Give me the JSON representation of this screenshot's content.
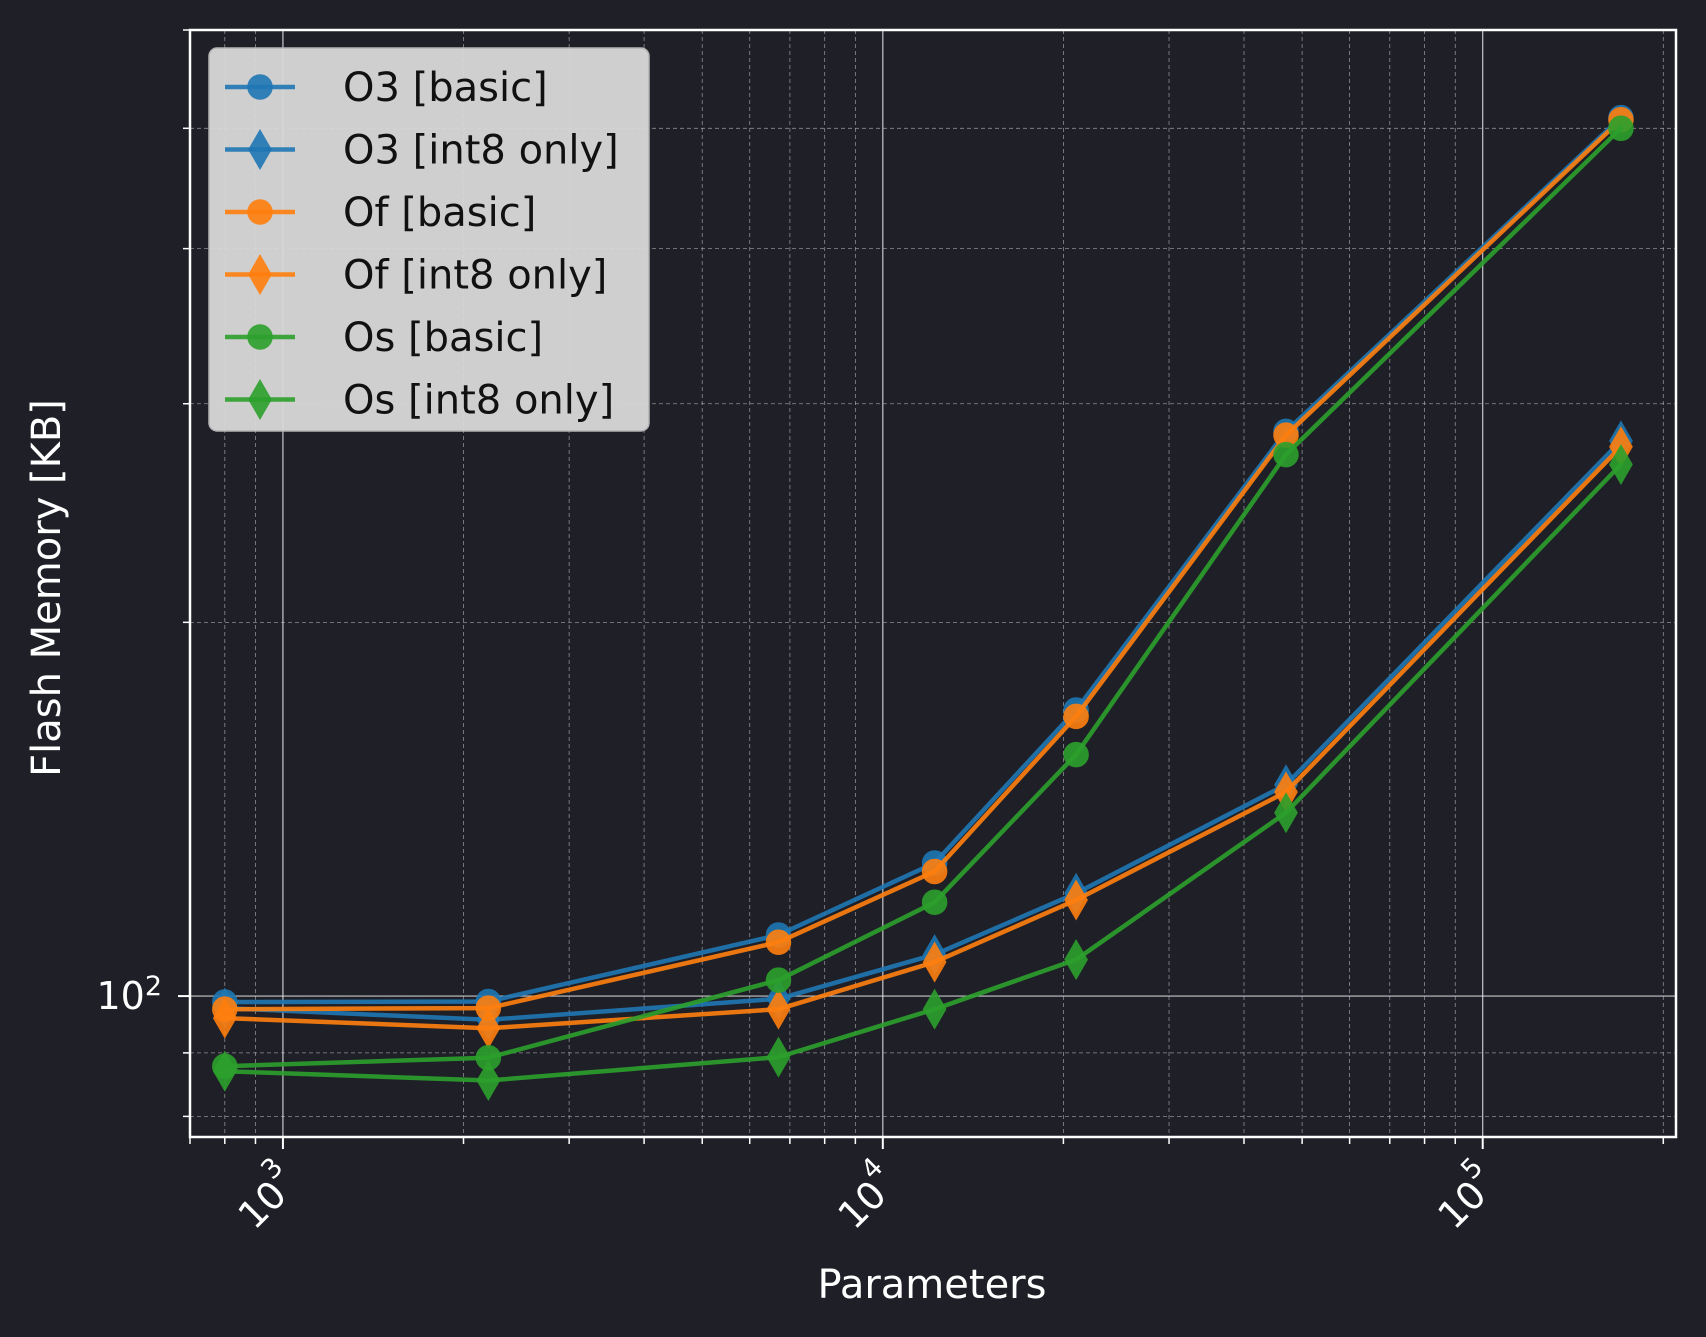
{
  "theme": {
    "background": "#1e1f27",
    "axes_edge": "#ffffff",
    "grid_major": "#e6e6e6",
    "grid_minor": "#bdbdbd",
    "legend_bg": "#d9d9d9",
    "legend_text": "#111111"
  },
  "chart_data": {
    "type": "line",
    "title": "",
    "xlabel": "Parameters",
    "ylabel": "Flash Memory [KB]",
    "xscale": "log",
    "yscale": "log",
    "xlim": [
      700,
      210000
    ],
    "ylim": [
      77,
      600
    ],
    "grid": "major and minor",
    "legend_position": "top-left",
    "x_tick_labels": [
      {
        "base": "10",
        "exp": "3",
        "value": 1000
      },
      {
        "base": "10",
        "exp": "4",
        "value": 10000
      },
      {
        "base": "10",
        "exp": "5",
        "value": 100000
      }
    ],
    "y_tick_labels": [
      {
        "base": "10",
        "exp": "2",
        "value": 100
      }
    ],
    "x": [
      800,
      2200,
      6700,
      12200,
      21000,
      47000,
      170000
    ],
    "series": [
      {
        "name": "O3 [basic]",
        "color": "#1f77b4",
        "marker": "circle",
        "values": [
          98.9,
          99.0,
          112.0,
          128.0,
          170.0,
          285.0,
          510.0
        ]
      },
      {
        "name": "O3 [int8 only]",
        "color": "#1f77b4",
        "marker": "diamond",
        "values": [
          97.8,
          95.7,
          99.5,
          108.0,
          121.0,
          148.0,
          280.0
        ]
      },
      {
        "name": "Of [basic]",
        "color": "#ff7f0e",
        "marker": "circle",
        "values": [
          97.6,
          97.8,
          110.5,
          126.0,
          168.0,
          283.0,
          508.0
        ]
      },
      {
        "name": "Of [int8 only]",
        "color": "#ff7f0e",
        "marker": "diamond",
        "values": [
          96.0,
          94.2,
          97.6,
          106.5,
          119.5,
          146.0,
          277.0
        ]
      },
      {
        "name": "Os [basic]",
        "color": "#2ca02c",
        "marker": "circle",
        "values": [
          87.8,
          89.2,
          103.0,
          119.0,
          156.5,
          273.0,
          500.0
        ]
      },
      {
        "name": "Os [int8 only]",
        "color": "#2ca02c",
        "marker": "diamond",
        "values": [
          87.0,
          85.5,
          89.3,
          97.6,
          107.0,
          140.5,
          268.0
        ]
      }
    ]
  }
}
